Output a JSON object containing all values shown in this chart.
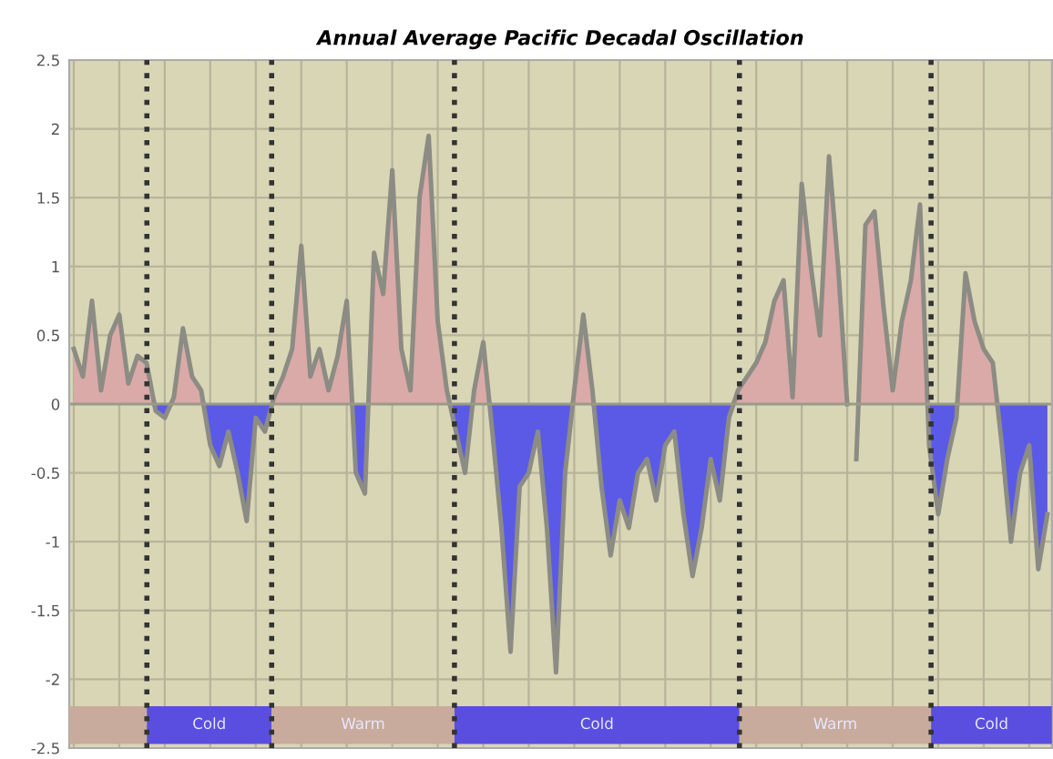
{
  "chart_data": {
    "type": "area",
    "title": "Annual Average Pacific Decadal Oscillation",
    "categories": [
      null,
      null,
      null,
      null,
      null,
      null,
      null,
      null,
      null,
      null,
      null,
      null,
      null,
      null,
      null,
      null,
      null,
      null,
      null,
      null,
      null,
      null,
      null,
      null,
      null,
      null,
      null,
      null,
      null,
      null,
      null,
      null,
      null,
      null,
      null,
      null,
      null,
      null,
      null,
      null,
      null,
      null,
      null,
      null,
      null,
      null,
      null,
      null,
      null,
      null,
      null,
      null,
      null,
      null,
      null,
      null,
      null,
      null,
      null,
      null,
      null,
      null,
      null,
      null,
      null,
      null,
      null,
      null,
      null,
      null,
      null,
      null,
      null,
      null,
      null,
      null,
      null,
      null,
      null,
      null,
      null,
      null,
      null,
      null,
      null,
      null,
      null,
      null,
      null,
      null,
      null,
      null,
      null,
      null,
      null,
      null,
      null,
      null,
      null,
      null,
      null,
      null,
      null,
      null,
      null,
      null,
      null,
      null
    ],
    "series": [
      {
        "color": "#d9aaa8",
        "values": [
          0.4,
          0.2,
          0.75,
          0.1,
          0.5,
          0.65,
          0.15,
          0.35,
          0.3,
          null,
          null,
          0.05,
          0.55,
          0.2,
          0.1,
          null,
          null,
          null,
          null,
          null,
          null,
          null,
          0.05,
          0.2,
          0.4,
          1.15,
          0.2,
          0.4,
          0.1,
          0.35,
          0.75,
          null,
          null,
          1.1,
          0.8,
          1.7,
          0.4,
          0.1,
          1.5,
          1.95,
          0.6,
          0.1,
          null,
          null,
          0.1,
          0.45,
          null,
          null,
          null,
          null,
          null,
          null,
          null,
          null,
          null,
          0.1,
          0.65,
          0.1,
          null,
          null,
          null,
          null,
          null,
          null,
          null,
          null,
          null,
          null,
          null,
          null,
          null,
          null,
          null,
          0.1,
          0.2,
          0.3,
          0.45,
          0.75,
          0.9,
          0.05,
          1.6,
          1.0,
          0.5,
          1.8,
          1.0,
          0.0,
          null,
          1.3,
          1.4,
          0.7,
          0.1,
          0.6,
          0.9,
          1.45,
          null,
          null,
          null,
          null,
          0.95,
          0.6,
          0.4,
          0.3,
          null,
          null,
          null,
          null,
          null,
          null
        ]
      },
      {
        "color": "#5a5ae6",
        "values": [
          null,
          null,
          null,
          null,
          null,
          null,
          null,
          null,
          null,
          -0.05,
          -0.1,
          null,
          null,
          null,
          null,
          -0.3,
          -0.45,
          -0.2,
          -0.5,
          -0.85,
          -0.1,
          -0.2,
          null,
          null,
          null,
          null,
          null,
          null,
          null,
          null,
          null,
          -0.5,
          -0.65,
          null,
          null,
          null,
          null,
          null,
          null,
          null,
          null,
          null,
          -0.2,
          -0.5,
          null,
          null,
          -0.2,
          -0.9,
          -1.8,
          -0.6,
          -0.5,
          -0.2,
          -0.9,
          -1.95,
          -0.5,
          null,
          null,
          null,
          -0.6,
          -1.1,
          -0.7,
          -0.9,
          -0.5,
          -0.4,
          -0.7,
          -0.3,
          -0.2,
          -0.8,
          -1.25,
          -0.9,
          -0.4,
          -0.7,
          -0.1,
          null,
          null,
          null,
          null,
          null,
          null,
          null,
          null,
          null,
          null,
          null,
          null,
          null,
          -0.4,
          null,
          null,
          null,
          null,
          null,
          null,
          null,
          -0.3,
          -0.8,
          -0.4,
          -0.1,
          null,
          null,
          null,
          null,
          -0.3,
          -1.0,
          -0.5,
          -0.3,
          -1.2,
          -0.8
        ]
      }
    ],
    "ylim": [
      -2.5,
      2.5
    ],
    "yticks": [
      2.5,
      2,
      1.5,
      1,
      0.5,
      0,
      -0.5,
      -1,
      -1.5,
      -2,
      -2.5
    ],
    "tick_labels": "y",
    "grid": true,
    "annotations": [
      "Cold",
      "Warm",
      "Cold",
      "Warm",
      "Cold"
    ]
  }
}
